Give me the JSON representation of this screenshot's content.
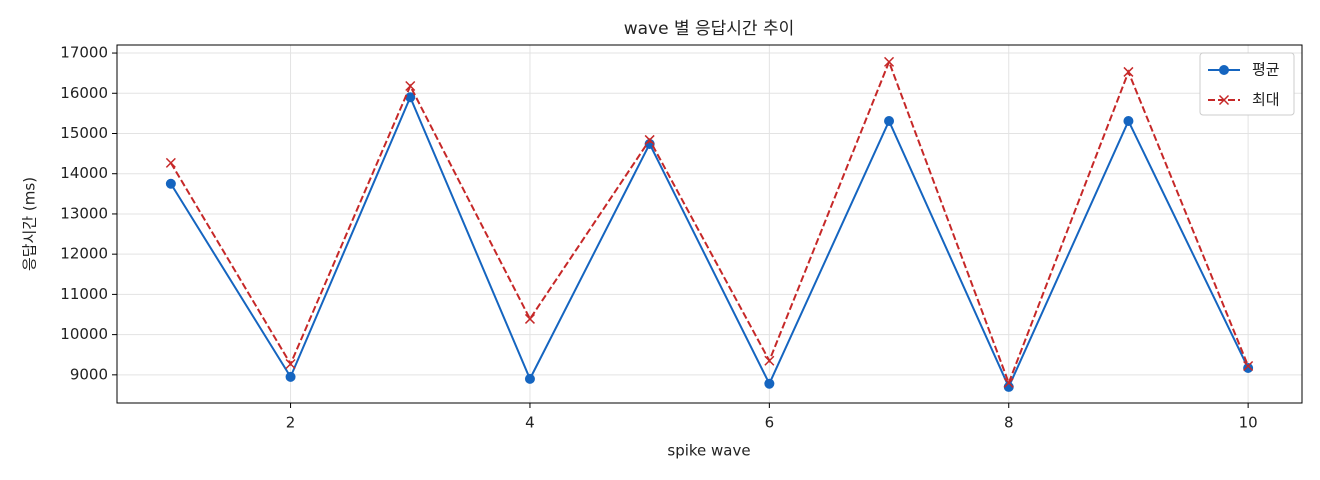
{
  "chart_data": {
    "type": "line",
    "title": "wave 별 응답시간 추이",
    "x_label": "spike wave",
    "y_label": "응답시간 (ms)",
    "x": [
      1,
      2,
      3,
      4,
      5,
      6,
      7,
      8,
      9,
      10
    ],
    "series": [
      {
        "name": "평균",
        "color": "#1565c0",
        "linestyle": "solid",
        "marker": "circle",
        "values": [
          13750,
          8950,
          15900,
          8900,
          14740,
          8780,
          15310,
          8700,
          15310,
          9170
        ]
      },
      {
        "name": "최대",
        "color": "#c62828",
        "linestyle": "dashed",
        "marker": "x",
        "values": [
          14270,
          9270,
          16180,
          10390,
          14840,
          9350,
          16780,
          8800,
          16530,
          9220
        ]
      }
    ],
    "xlim": [
      0.55,
      10.45
    ],
    "xticks": [
      2,
      4,
      6,
      8,
      10
    ],
    "ylim": [
      8300,
      17200
    ],
    "yticks": [
      9000,
      10000,
      11000,
      12000,
      13000,
      14000,
      15000,
      16000,
      17000
    ],
    "grid": true,
    "legend": "upper right"
  }
}
